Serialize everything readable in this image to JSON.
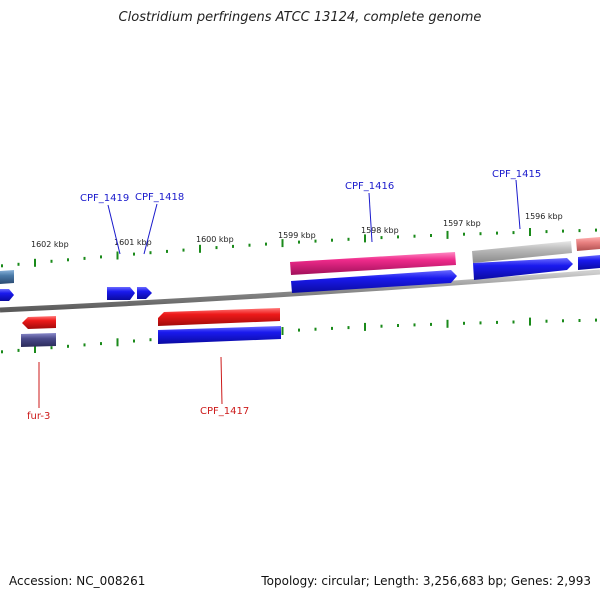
{
  "title": "Clostridium perfringens ATCC 13124, complete genome",
  "footer": {
    "accession": "Accession: NC_008261",
    "summary": "Topology: circular; Length: 3,256,683 bp; Genes: 2,993"
  },
  "colors": {
    "backbone": "#8a8a8a",
    "tick": "#1a8a1a",
    "label_blue": "#1a1acc",
    "label_red": "#cc1a1a",
    "gene_blue": "#1a1aee",
    "gene_red": "#ee1a1a",
    "gene_pink": "#ee2a8a",
    "gene_gray": "#b8b8b8",
    "gene_lightred": "#e88080",
    "gene_steel": "#4a7aa8",
    "gene_purple": "#4a4a8a"
  },
  "scale": {
    "labels": [
      "1602 kbp",
      "1601 kbp",
      "1600 kbp",
      "1599 kbp",
      "1598 kbp",
      "1597 kbp",
      "1596 kbp"
    ]
  },
  "gene_labels": [
    {
      "text": "CPF_1419",
      "color": "blue"
    },
    {
      "text": "CPF_1418",
      "color": "blue"
    },
    {
      "text": "CPF_1416",
      "color": "blue"
    },
    {
      "text": "CPF_1415",
      "color": "blue"
    },
    {
      "text": "fur-3",
      "color": "red"
    },
    {
      "text": "CPF_1417",
      "color": "red"
    }
  ]
}
